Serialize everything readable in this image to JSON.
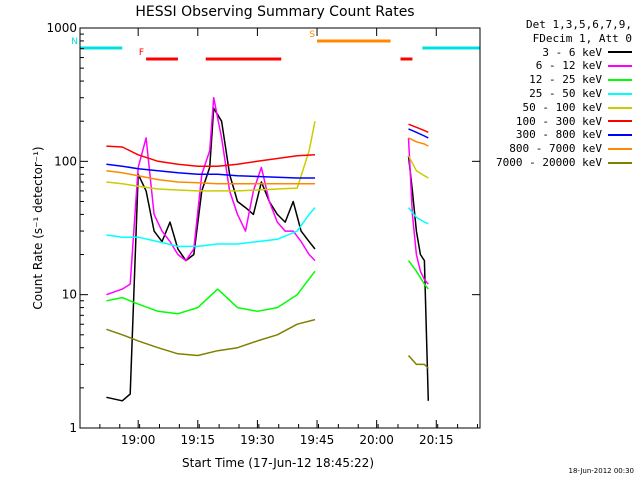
{
  "chart_data": {
    "type": "line",
    "title": "HESSI Observing Summary Count Rates",
    "xlabel": "Start Time (17-Jun-12 18:45:22)",
    "ylabel": "Count Rate (s⁻¹ detector⁻¹)",
    "yscale": "log",
    "ylim": [
      1,
      1000
    ],
    "xlim": [
      "18:45:22",
      "20:26:00"
    ],
    "x_ticks": [
      "19:00",
      "19:15",
      "19:30",
      "19:45",
      "20:00",
      "20:15"
    ],
    "y_ticks": [
      "1",
      "10",
      "100",
      "1000"
    ],
    "legend_header": [
      "Det 1,3,5,6,7,9,",
      "FDecim 1, Att 0"
    ],
    "legend_placement": "right",
    "footer": "18-Jun-2012 00:30",
    "flags": {
      "N": {
        "label": "N",
        "color": "#00e0e0",
        "segments": [
          [
            "18:45:22",
            "18:56:00"
          ],
          [
            "20:11:30",
            "20:26:00"
          ]
        ]
      },
      "F": {
        "label": "F",
        "color": "#ff0000",
        "segments": [
          [
            "19:02:00",
            "19:10:00"
          ],
          [
            "19:17:00",
            "19:36:00"
          ],
          [
            "20:06:00",
            "20:09:00"
          ]
        ]
      },
      "S": {
        "label": "S",
        "color": "#ff8800",
        "segments": [
          [
            "19:45:00",
            "20:03:30"
          ]
        ]
      }
    },
    "series": [
      {
        "name": "3 - 6 keV",
        "color": "#000000",
        "x": [
          "18:52:00",
          "18:56:00",
          "18:58:00",
          "19:00:00",
          "19:02:00",
          "19:04:00",
          "19:06:00",
          "19:08:00",
          "19:10:00",
          "19:12:00",
          "19:14:00",
          "19:16:00",
          "19:18:00",
          "19:19:00",
          "19:21:00",
          "19:23:00",
          "19:25:00",
          "19:27:00",
          "19:29:00",
          "19:31:00",
          "19:33:00",
          "19:35:00",
          "19:37:00",
          "19:39:00",
          "19:41:00",
          "19:43:00",
          "19:44:30",
          "20:08:00",
          "20:09:00",
          "20:10:00",
          "20:11:00",
          "20:12:00",
          "20:13:00"
        ],
        "y": [
          1.7,
          1.6,
          1.8,
          80,
          60,
          30,
          25,
          35,
          22,
          18,
          20,
          60,
          90,
          250,
          200,
          80,
          50,
          45,
          40,
          70,
          50,
          40,
          35,
          50,
          30,
          25,
          22,
          110,
          60,
          30,
          20,
          18,
          1.6
        ]
      },
      {
        "name": "6 - 12 keV",
        "color": "#ff00ff",
        "x": [
          "18:52:00",
          "18:56:00",
          "18:58:00",
          "19:00:00",
          "19:02:00",
          "19:04:00",
          "19:06:00",
          "19:08:00",
          "19:10:00",
          "19:12:00",
          "19:14:00",
          "19:16:00",
          "19:18:00",
          "19:19:00",
          "19:21:00",
          "19:23:00",
          "19:25:00",
          "19:27:00",
          "19:29:00",
          "19:31:00",
          "19:33:00",
          "19:35:00",
          "19:37:00",
          "19:39:00",
          "19:41:00",
          "19:43:00",
          "19:44:30",
          "20:08:00",
          "20:09:00",
          "20:10:00",
          "20:11:00",
          "20:12:00",
          "20:13:00"
        ],
        "y": [
          10,
          11,
          12,
          90,
          150,
          40,
          30,
          25,
          20,
          18,
          22,
          80,
          120,
          300,
          150,
          60,
          40,
          30,
          60,
          90,
          50,
          35,
          30,
          30,
          25,
          20,
          18,
          150,
          40,
          20,
          15,
          13,
          12
        ]
      },
      {
        "name": "12 - 25 keV",
        "color": "#00ff00",
        "x": [
          "18:52:00",
          "18:56:00",
          "19:00:00",
          "19:05:00",
          "19:10:00",
          "19:15:00",
          "19:20:00",
          "19:25:00",
          "19:30:00",
          "19:35:00",
          "19:40:00",
          "19:44:30",
          "20:08:00",
          "20:10:00",
          "20:12:00",
          "20:13:00"
        ],
        "y": [
          9,
          9.5,
          8.5,
          7.5,
          7.2,
          8,
          11,
          8,
          7.5,
          8,
          10,
          15,
          18,
          15,
          12,
          11
        ]
      },
      {
        "name": "25 - 50 keV",
        "color": "#00ffff",
        "x": [
          "18:52:00",
          "18:56:00",
          "19:00:00",
          "19:05:00",
          "19:10:00",
          "19:15:00",
          "19:20:00",
          "19:25:00",
          "19:30:00",
          "19:35:00",
          "19:40:00",
          "19:43:00",
          "19:44:30",
          "20:08:00",
          "20:10:00",
          "20:12:00",
          "20:13:00"
        ],
        "y": [
          28,
          27,
          27,
          25,
          23,
          23,
          24,
          24,
          25,
          26,
          30,
          40,
          45,
          45,
          38,
          35,
          34
        ]
      },
      {
        "name": "50 - 100 keV",
        "color": "#cccc00",
        "x": [
          "18:52:00",
          "18:56:00",
          "19:00:00",
          "19:05:00",
          "19:10:00",
          "19:15:00",
          "19:20:00",
          "19:25:00",
          "19:30:00",
          "19:35:00",
          "19:40:00",
          "19:43:00",
          "19:44:30",
          "20:08:00",
          "20:10:00",
          "20:12:00",
          "20:13:00"
        ],
        "y": [
          70,
          68,
          65,
          62,
          61,
          60,
          60,
          60,
          61,
          62,
          63,
          120,
          200,
          110,
          85,
          78,
          75
        ]
      },
      {
        "name": "100 - 300 keV",
        "color": "#ff0000",
        "x": [
          "18:52:00",
          "18:56:00",
          "19:00:00",
          "19:05:00",
          "19:10:00",
          "19:15:00",
          "19:20:00",
          "19:25:00",
          "19:30:00",
          "19:35:00",
          "19:40:00",
          "19:44:30",
          "20:08:00",
          "20:10:00",
          "20:12:00",
          "20:13:00"
        ],
        "y": [
          130,
          128,
          112,
          100,
          95,
          92,
          92,
          95,
          100,
          105,
          110,
          112,
          190,
          180,
          170,
          165
        ]
      },
      {
        "name": "300 - 800 keV",
        "color": "#0000ff",
        "x": [
          "18:52:00",
          "18:56:00",
          "19:00:00",
          "19:05:00",
          "19:10:00",
          "19:15:00",
          "19:20:00",
          "19:25:00",
          "19:30:00",
          "19:35:00",
          "19:40:00",
          "19:44:30",
          "20:08:00",
          "20:10:00",
          "20:12:00",
          "20:13:00"
        ],
        "y": [
          95,
          92,
          88,
          85,
          82,
          80,
          80,
          78,
          77,
          76,
          75,
          75,
          175,
          165,
          155,
          150
        ]
      },
      {
        "name": "800 - 7000 keV",
        "color": "#ff8800",
        "x": [
          "18:52:00",
          "18:56:00",
          "19:00:00",
          "19:05:00",
          "19:10:00",
          "19:15:00",
          "19:20:00",
          "19:25:00",
          "19:30:00",
          "19:35:00",
          "19:40:00",
          "19:44:30",
          "20:08:00",
          "20:10:00",
          "20:12:00",
          "20:13:00"
        ],
        "y": [
          85,
          82,
          78,
          73,
          70,
          69,
          68,
          68,
          68,
          68,
          68,
          68,
          150,
          140,
          135,
          130
        ]
      },
      {
        "name": "7000 - 20000 keV",
        "color": "#808000",
        "x": [
          "18:52:00",
          "18:56:00",
          "19:00:00",
          "19:05:00",
          "19:10:00",
          "19:15:00",
          "19:20:00",
          "19:25:00",
          "19:30:00",
          "19:35:00",
          "19:40:00",
          "19:44:30",
          "20:08:00",
          "20:10:00",
          "20:12:00",
          "20:13:00"
        ],
        "y": [
          5.5,
          5,
          4.5,
          4,
          3.6,
          3.5,
          3.8,
          4,
          4.5,
          5,
          6,
          6.5,
          3.5,
          3,
          3,
          2.8
        ]
      }
    ]
  }
}
